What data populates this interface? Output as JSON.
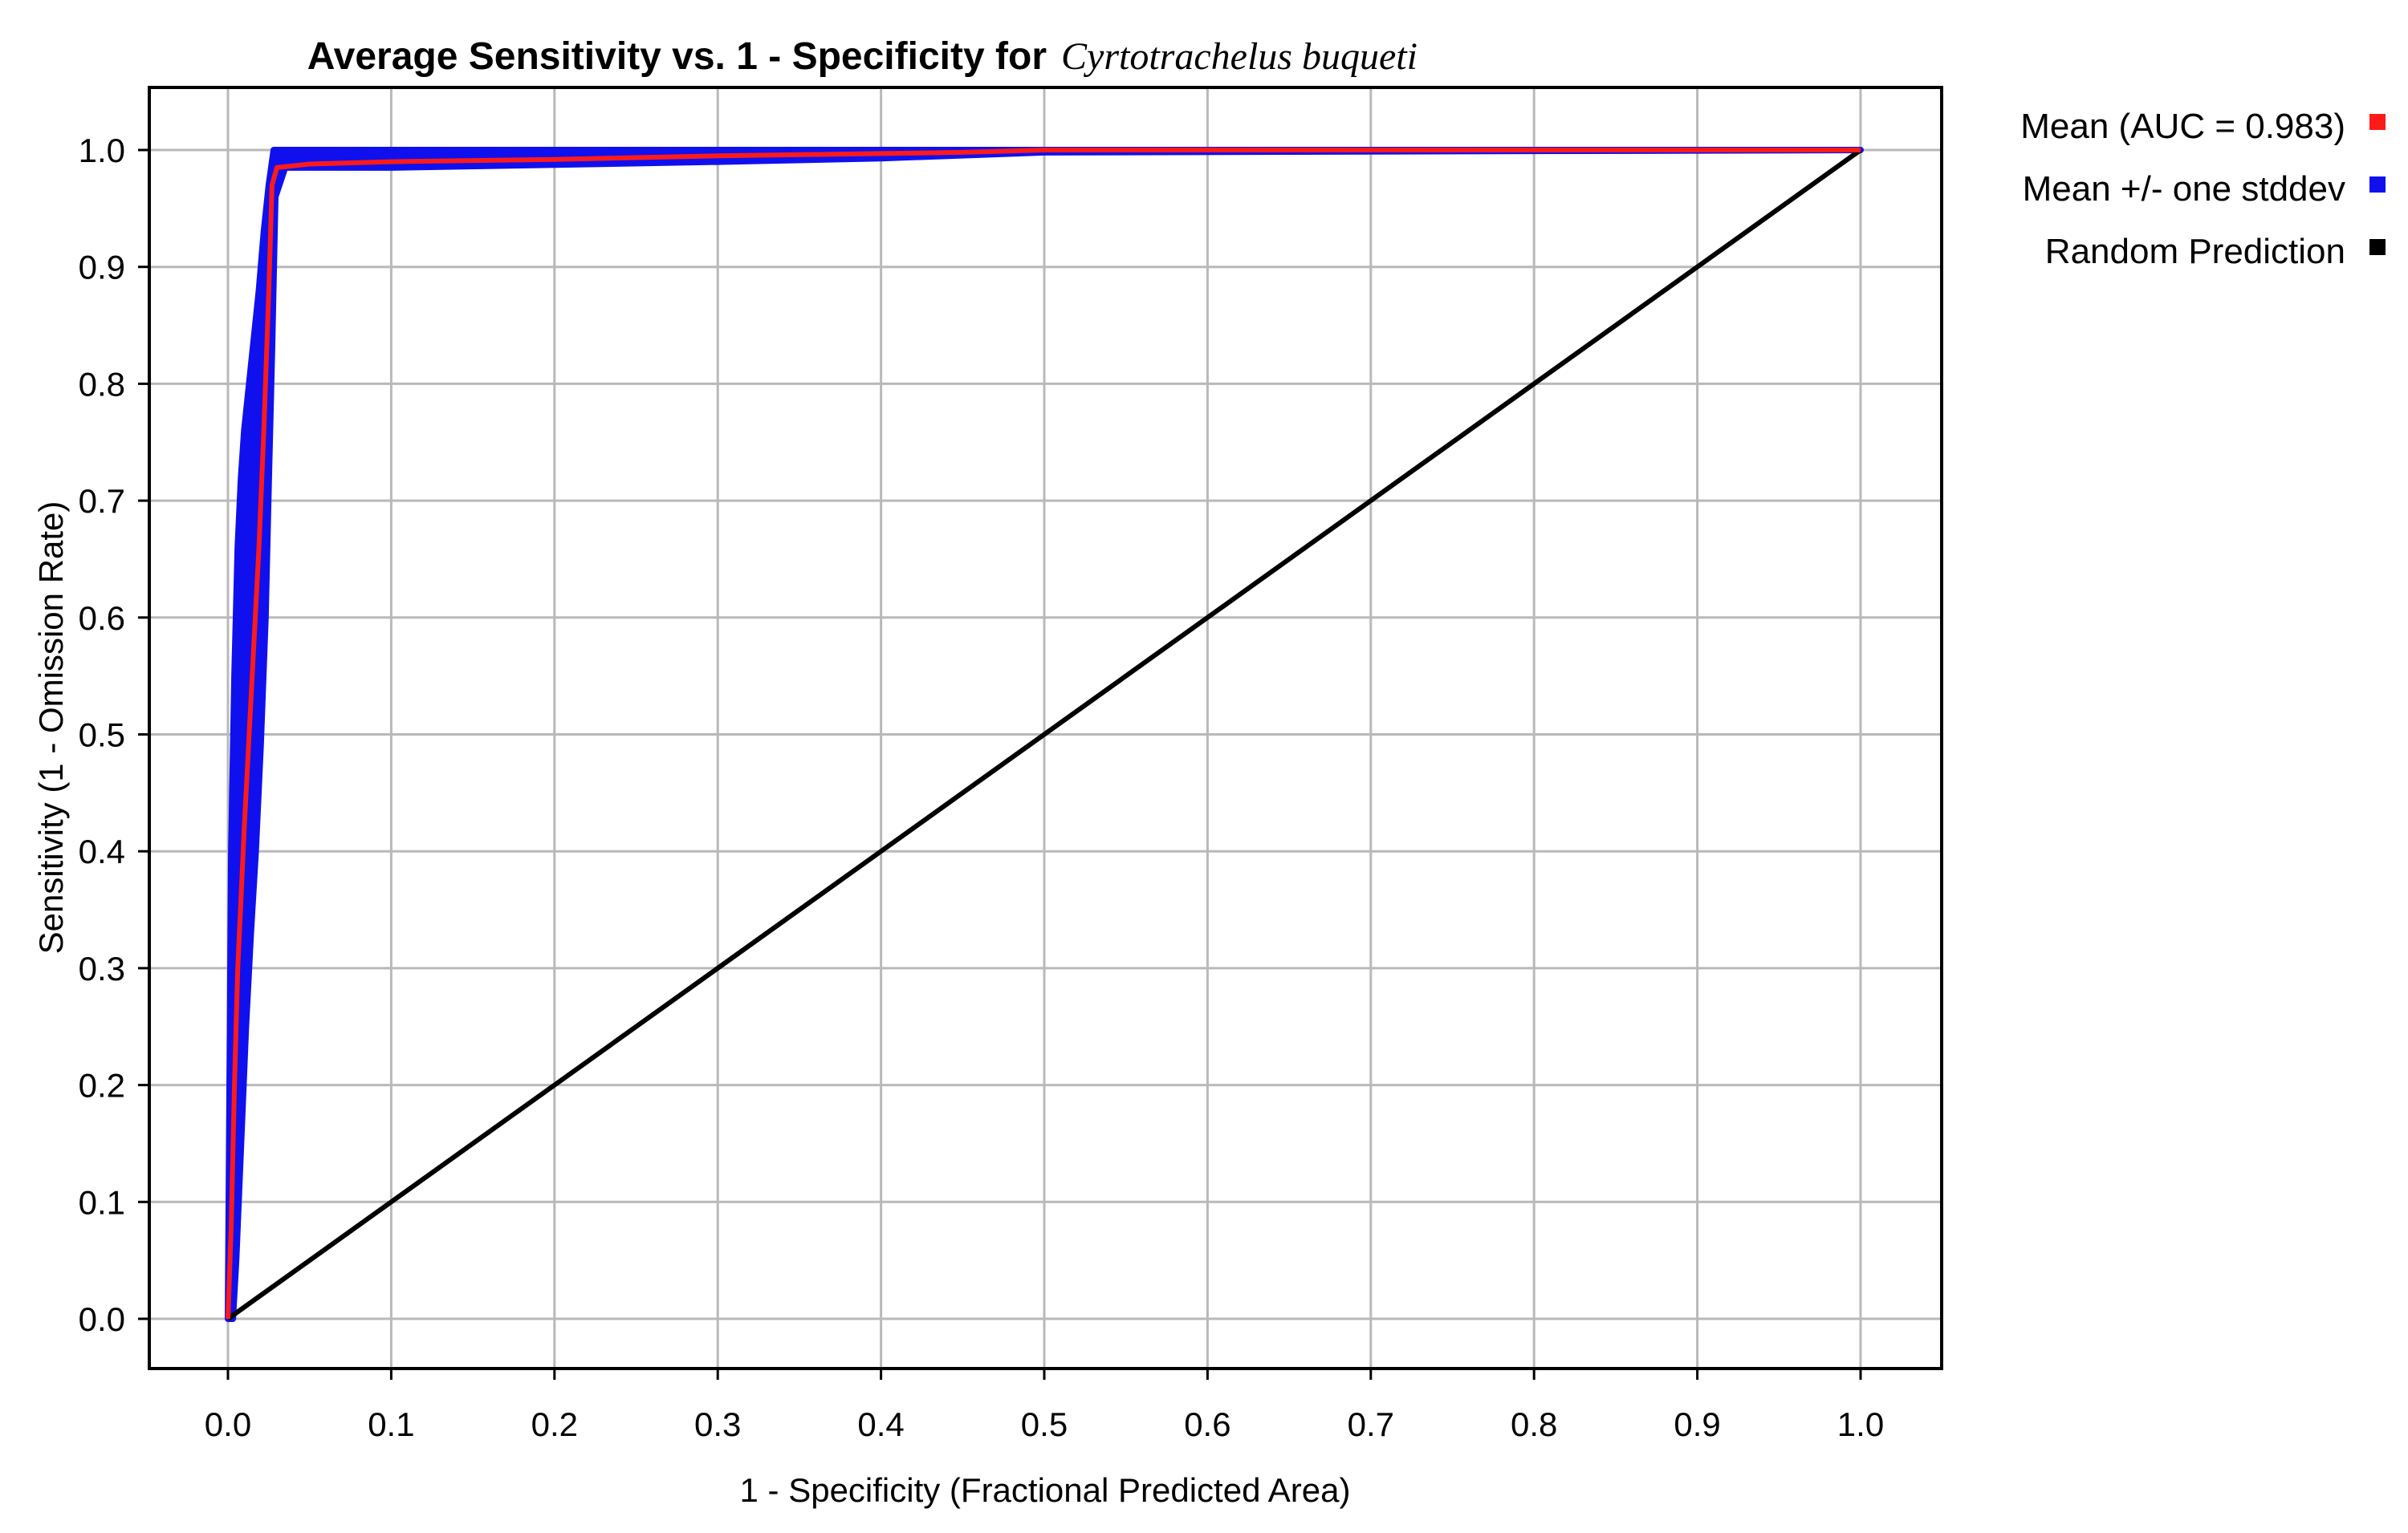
{
  "chart_data": {
    "type": "line",
    "title": "Average Sensitivity vs. 1 - Specificity for",
    "title_species": "Cyrtotrachelus buqueti",
    "xlabel": "1 - Specificity (Fractional Predicted Area)",
    "ylabel": "Sensitivity (1 - Omission Rate)",
    "xlim": [
      0,
      1.05
    ],
    "ylim": [
      -0.045,
      1.045
    ],
    "x_ticks": [
      "0.0",
      "0.1",
      "0.2",
      "0.3",
      "0.4",
      "0.5",
      "0.6",
      "0.7",
      "0.8",
      "0.9",
      "1.0"
    ],
    "y_ticks": [
      "0.0",
      "0.1",
      "0.2",
      "0.3",
      "0.4",
      "0.5",
      "0.6",
      "0.7",
      "0.8",
      "0.9",
      "1.0"
    ],
    "grid": true,
    "legend_position": "right-top",
    "series": [
      {
        "name": "Mean (AUC = 0.983)",
        "color": "#ff1a1a",
        "x": [
          0,
          0.002,
          0.004,
          0.006,
          0.008,
          0.01,
          0.013,
          0.016,
          0.019,
          0.022,
          0.025,
          0.027,
          0.03,
          0.05,
          0.1,
          0.2,
          0.3,
          0.4,
          0.45,
          0.5,
          0.7,
          1.0
        ],
        "y": [
          0,
          0.08,
          0.2,
          0.3,
          0.36,
          0.42,
          0.5,
          0.58,
          0.66,
          0.76,
          0.88,
          0.97,
          0.985,
          0.988,
          0.99,
          0.992,
          0.995,
          0.997,
          0.998,
          1.0,
          1.0,
          1.0
        ]
      },
      {
        "name": "Mean +/- one stddev",
        "color": "#1010ee",
        "upper": {
          "x": [
            0,
            0.002,
            0.004,
            0.006,
            0.008,
            0.01,
            0.013,
            0.016,
            0.019,
            0.022,
            0.025,
            0.028,
            0.035,
            0.1,
            0.3,
            0.5,
            1.0
          ],
          "y": [
            0,
            0.4,
            0.55,
            0.66,
            0.72,
            0.76,
            0.8,
            0.84,
            0.88,
            0.93,
            0.97,
            1.0,
            1.0,
            1.0,
            1.0,
            1.0,
            1.0
          ]
        },
        "lower": {
          "x": [
            0.003,
            0.005,
            0.008,
            0.011,
            0.014,
            0.017,
            0.02,
            0.023,
            0.025,
            0.027,
            0.029,
            0.035,
            0.1,
            0.3,
            0.4,
            0.5,
            1.0
          ],
          "y": [
            0,
            0.05,
            0.15,
            0.25,
            0.33,
            0.4,
            0.49,
            0.6,
            0.72,
            0.83,
            0.96,
            0.985,
            0.985,
            0.99,
            0.993,
            0.998,
            1.0
          ]
        }
      },
      {
        "name": "Random Prediction",
        "color": "#000000",
        "x": [
          0,
          1
        ],
        "y": [
          0,
          1
        ]
      }
    ]
  }
}
